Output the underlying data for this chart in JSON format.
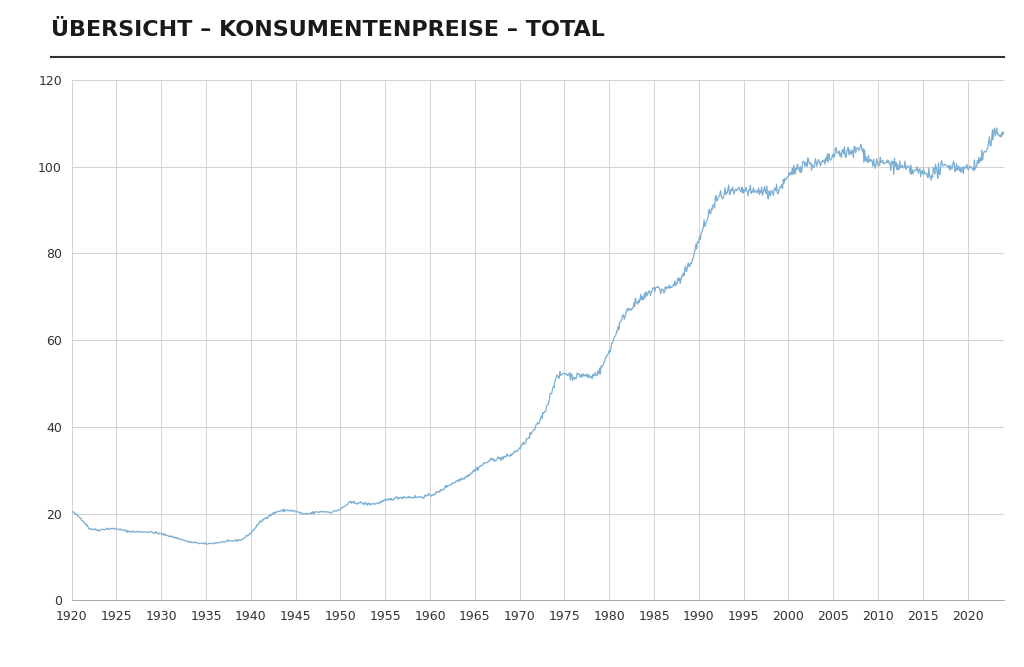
{
  "title": "ÜBERSICHT – KONSUMENTENPREISE – TOTAL",
  "line_color": "#7bafd4",
  "background_color": "#ffffff",
  "grid_color": "#cccccc",
  "title_color": "#1a1a1a",
  "xlim": [
    1920,
    2024
  ],
  "ylim": [
    0,
    120
  ],
  "xticks": [
    1920,
    1925,
    1930,
    1935,
    1940,
    1945,
    1950,
    1955,
    1960,
    1965,
    1970,
    1975,
    1980,
    1985,
    1990,
    1995,
    2000,
    2005,
    2010,
    2015,
    2020
  ],
  "yticks": [
    0,
    20,
    40,
    60,
    80,
    100,
    120
  ],
  "years": [
    1920,
    1921,
    1922,
    1923,
    1924,
    1925,
    1926,
    1927,
    1928,
    1929,
    1930,
    1931,
    1932,
    1933,
    1934,
    1935,
    1936,
    1937,
    1938,
    1939,
    1940,
    1941,
    1942,
    1943,
    1944,
    1945,
    1946,
    1947,
    1948,
    1949,
    1950,
    1951,
    1952,
    1953,
    1954,
    1955,
    1956,
    1957,
    1958,
    1959,
    1960,
    1961,
    1962,
    1963,
    1964,
    1965,
    1966,
    1967,
    1968,
    1969,
    1970,
    1971,
    1972,
    1973,
    1974,
    1975,
    1976,
    1977,
    1978,
    1979,
    1980,
    1981,
    1982,
    1983,
    1984,
    1985,
    1986,
    1987,
    1988,
    1989,
    1990,
    1991,
    1992,
    1993,
    1994,
    1995,
    1996,
    1997,
    1998,
    1999,
    2000,
    2001,
    2002,
    2003,
    2004,
    2005,
    2006,
    2007,
    2008,
    2009,
    2010,
    2011,
    2012,
    2013,
    2014,
    2015,
    2016,
    2017,
    2018,
    2019,
    2020,
    2021,
    2022,
    2023,
    2024
  ],
  "values": [
    20.5,
    19.0,
    16.5,
    16.2,
    16.5,
    16.5,
    16.0,
    15.8,
    15.8,
    15.7,
    15.3,
    14.8,
    14.2,
    13.5,
    13.2,
    13.0,
    13.2,
    13.5,
    13.7,
    14.0,
    15.5,
    18.0,
    19.5,
    20.5,
    20.8,
    20.5,
    19.8,
    20.2,
    20.5,
    20.3,
    21.0,
    22.5,
    22.5,
    22.2,
    22.3,
    23.0,
    23.5,
    23.8,
    23.8,
    23.8,
    24.2,
    25.0,
    26.5,
    27.5,
    28.5,
    30.0,
    31.5,
    32.5,
    32.8,
    33.5,
    35.0,
    37.5,
    40.5,
    44.5,
    51.0,
    52.5,
    51.5,
    52.0,
    51.5,
    53.0,
    57.5,
    63.0,
    67.0,
    68.5,
    70.0,
    72.0,
    71.5,
    72.5,
    74.0,
    77.5,
    83.0,
    88.5,
    92.5,
    94.0,
    94.0,
    94.5,
    94.0,
    94.5,
    94.0,
    95.0,
    97.5,
    100.0,
    101.0,
    100.5,
    100.8,
    102.5,
    103.5,
    103.0,
    104.5,
    101.5,
    100.5,
    101.0,
    100.2,
    99.5,
    99.0,
    98.5,
    98.5,
    99.5,
    100.5,
    99.8,
    99.5,
    100.5,
    103.5,
    107.5,
    108.0
  ]
}
